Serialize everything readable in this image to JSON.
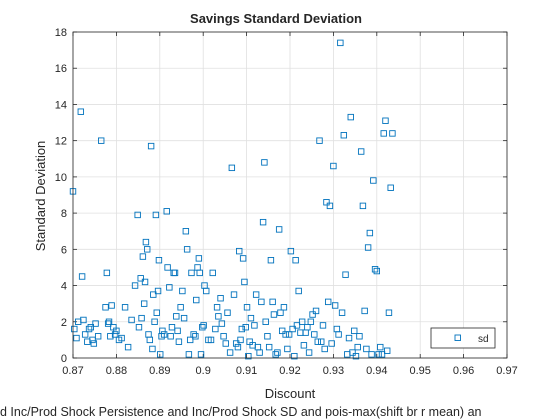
{
  "chart_data": {
    "type": "scatter",
    "title": "Savings Standard Deviation",
    "xlabel": "Discount",
    "ylabel": "Standard Deviation",
    "xlim": [
      0.87,
      0.97
    ],
    "ylim": [
      0,
      18
    ],
    "xticks": [
      0.87,
      0.88,
      0.89,
      0.9,
      0.91,
      0.92,
      0.93,
      0.94,
      0.95,
      0.96,
      0.97
    ],
    "xtick_labels": [
      "0.87",
      "0.88",
      "0.89",
      "0.9",
      "0.91",
      "0.92",
      "0.93",
      "0.94",
      "0.95",
      "0.96",
      "0.97"
    ],
    "yticks": [
      0,
      2,
      4,
      6,
      8,
      10,
      12,
      14,
      16,
      18
    ],
    "ytick_labels": [
      "0",
      "2",
      "4",
      "6",
      "8",
      "10",
      "12",
      "14",
      "16",
      "18"
    ],
    "grid": true,
    "legend_placement": "bottom-right",
    "caption": "d Inc/Prod Shock Persistence and Inc/Prod Shock SD and pois-max(shift br r mean) an",
    "marker_color": "#0072BD",
    "series": [
      {
        "name": "sd",
        "marker": "square",
        "points": [
          [
            0.87,
            9.2
          ],
          [
            0.8703,
            1.6
          ],
          [
            0.8708,
            1.1
          ],
          [
            0.8712,
            2.0
          ],
          [
            0.8718,
            13.6
          ],
          [
            0.8721,
            4.5
          ],
          [
            0.8724,
            2.1
          ],
          [
            0.8728,
            1.3
          ],
          [
            0.8733,
            0.9
          ],
          [
            0.8737,
            1.6
          ],
          [
            0.8741,
            1.7
          ],
          [
            0.8745,
            1.0
          ],
          [
            0.8748,
            0.8
          ],
          [
            0.8752,
            1.9
          ],
          [
            0.8758,
            1.2
          ],
          [
            0.8765,
            12.0
          ],
          [
            0.8775,
            2.8
          ],
          [
            0.8778,
            4.7
          ],
          [
            0.8781,
            1.9
          ],
          [
            0.8783,
            2.0
          ],
          [
            0.8786,
            1.2
          ],
          [
            0.8789,
            2.9
          ],
          [
            0.8793,
            1.7
          ],
          [
            0.8797,
            1.3
          ],
          [
            0.88,
            1.5
          ],
          [
            0.8806,
            1.0
          ],
          [
            0.8812,
            1.1
          ],
          [
            0.882,
            2.8
          ],
          [
            0.8827,
            0.6
          ],
          [
            0.8835,
            2.1
          ],
          [
            0.8843,
            4.0
          ],
          [
            0.8849,
            7.9
          ],
          [
            0.8852,
            1.7
          ],
          [
            0.8856,
            4.4
          ],
          [
            0.8858,
            2.2
          ],
          [
            0.8861,
            5.6
          ],
          [
            0.8864,
            3.0
          ],
          [
            0.8866,
            4.2
          ],
          [
            0.8868,
            6.4
          ],
          [
            0.8871,
            6.0
          ],
          [
            0.8874,
            1.3
          ],
          [
            0.8877,
            1.0
          ],
          [
            0.888,
            11.7
          ],
          [
            0.8883,
            0.5
          ],
          [
            0.8885,
            3.5
          ],
          [
            0.8888,
            2.0
          ],
          [
            0.8891,
            7.9
          ],
          [
            0.8893,
            2.5
          ],
          [
            0.8896,
            3.7
          ],
          [
            0.8898,
            5.4
          ],
          [
            0.8901,
            0.2
          ],
          [
            0.8904,
            1.2
          ],
          [
            0.8906,
            1.5
          ],
          [
            0.891,
            1.3
          ],
          [
            0.8916,
            8.1
          ],
          [
            0.8918,
            5.0
          ],
          [
            0.8922,
            3.9
          ],
          [
            0.8925,
            1.2
          ],
          [
            0.8928,
            1.7
          ],
          [
            0.8932,
            4.7
          ],
          [
            0.8935,
            4.7
          ],
          [
            0.8938,
            2.3
          ],
          [
            0.8941,
            1.5
          ],
          [
            0.8944,
            0.9
          ],
          [
            0.8948,
            2.8
          ],
          [
            0.8952,
            3.7
          ],
          [
            0.8956,
            2.2
          ],
          [
            0.896,
            7.0
          ],
          [
            0.8963,
            6.0
          ],
          [
            0.8967,
            0.2
          ],
          [
            0.897,
            1.0
          ],
          [
            0.8973,
            4.7
          ],
          [
            0.8978,
            1.3
          ],
          [
            0.8982,
            1.2
          ],
          [
            0.8984,
            3.2
          ],
          [
            0.8987,
            5.0
          ],
          [
            0.899,
            5.5
          ],
          [
            0.8992,
            4.7
          ],
          [
            0.8995,
            0.2
          ],
          [
            0.8998,
            1.7
          ],
          [
            0.9001,
            1.8
          ],
          [
            0.9003,
            4.0
          ],
          [
            0.9007,
            3.7
          ],
          [
            0.9012,
            1.0
          ],
          [
            0.9018,
            1.0
          ],
          [
            0.9022,
            4.7
          ],
          [
            0.9028,
            1.6
          ],
          [
            0.9032,
            2.8
          ],
          [
            0.9035,
            2.3
          ],
          [
            0.904,
            3.3
          ],
          [
            0.9043,
            1.9
          ],
          [
            0.9047,
            1.2
          ],
          [
            0.9052,
            0.8
          ],
          [
            0.9056,
            2.5
          ],
          [
            0.9062,
            0.3
          ],
          [
            0.9066,
            10.5
          ],
          [
            0.9071,
            3.5
          ],
          [
            0.9076,
            0.8
          ],
          [
            0.908,
            0.6
          ],
          [
            0.9083,
            5.9
          ],
          [
            0.9086,
            1.0
          ],
          [
            0.9089,
            1.6
          ],
          [
            0.9092,
            5.5
          ],
          [
            0.9095,
            4.2
          ],
          [
            0.9098,
            1.7
          ],
          [
            0.9101,
            2.8
          ],
          [
            0.9104,
            0.1
          ],
          [
            0.9107,
            0.9
          ],
          [
            0.911,
            2.2
          ],
          [
            0.9114,
            0.7
          ],
          [
            0.9118,
            1.8
          ],
          [
            0.9122,
            3.5
          ],
          [
            0.9126,
            0.6
          ],
          [
            0.913,
            0.3
          ],
          [
            0.9134,
            3.1
          ],
          [
            0.9138,
            7.5
          ],
          [
            0.9141,
            10.8
          ],
          [
            0.9144,
            2.0
          ],
          [
            0.9148,
            1.2
          ],
          [
            0.9152,
            0.6
          ],
          [
            0.9156,
            5.4
          ],
          [
            0.916,
            3.1
          ],
          [
            0.9163,
            2.4
          ],
          [
            0.9167,
            0.2
          ],
          [
            0.9171,
            0.3
          ],
          [
            0.9175,
            7.1
          ],
          [
            0.9178,
            2.5
          ],
          [
            0.9182,
            1.5
          ],
          [
            0.9186,
            2.8
          ],
          [
            0.919,
            1.3
          ],
          [
            0.9194,
            0.5
          ],
          [
            0.9198,
            1.3
          ],
          [
            0.9202,
            5.9
          ],
          [
            0.9206,
            1.6
          ],
          [
            0.921,
            0.1
          ],
          [
            0.9213,
            5.4
          ],
          [
            0.9216,
            1.8
          ],
          [
            0.922,
            3.7
          ],
          [
            0.9224,
            1.4
          ],
          [
            0.9228,
            2.0
          ],
          [
            0.9232,
            0.7
          ],
          [
            0.9236,
            1.4
          ],
          [
            0.924,
            1.7
          ],
          [
            0.9244,
            0.3
          ],
          [
            0.9248,
            2.0
          ],
          [
            0.9252,
            2.4
          ],
          [
            0.9256,
            1.3
          ],
          [
            0.926,
            2.6
          ],
          [
            0.9264,
            0.9
          ],
          [
            0.9268,
            12.0
          ],
          [
            0.9272,
            0.9
          ],
          [
            0.9276,
            1.8
          ],
          [
            0.928,
            0.5
          ],
          [
            0.9284,
            8.6
          ],
          [
            0.9288,
            3.1
          ],
          [
            0.9292,
            8.4
          ],
          [
            0.9296,
            0.8
          ],
          [
            0.93,
            10.6
          ],
          [
            0.9304,
            2.9
          ],
          [
            0.9308,
            1.6
          ],
          [
            0.9312,
            1.3
          ],
          [
            0.9316,
            17.4
          ],
          [
            0.932,
            2.5
          ],
          [
            0.9324,
            12.3
          ],
          [
            0.9328,
            4.6
          ],
          [
            0.9332,
            0.2
          ],
          [
            0.9336,
            1.1
          ],
          [
            0.934,
            13.3
          ],
          [
            0.9344,
            0.3
          ],
          [
            0.9348,
            1.5
          ],
          [
            0.9352,
            0.1
          ],
          [
            0.9356,
            0.6
          ],
          [
            0.936,
            1.2
          ],
          [
            0.9364,
            11.4
          ],
          [
            0.9368,
            8.4
          ],
          [
            0.9372,
            2.6
          ],
          [
            0.9376,
            0.5
          ],
          [
            0.938,
            6.1
          ],
          [
            0.9384,
            6.9
          ],
          [
            0.9388,
            0.2
          ],
          [
            0.9392,
            9.8
          ],
          [
            0.9396,
            4.9
          ],
          [
            0.94,
            4.8
          ],
          [
            0.9404,
            0.2
          ],
          [
            0.9408,
            0.6
          ],
          [
            0.9412,
            0.2
          ],
          [
            0.9416,
            12.4
          ],
          [
            0.942,
            13.1
          ],
          [
            0.9424,
            0.4
          ],
          [
            0.9428,
            2.5
          ],
          [
            0.9432,
            9.4
          ],
          [
            0.9436,
            12.4
          ]
        ]
      }
    ]
  }
}
